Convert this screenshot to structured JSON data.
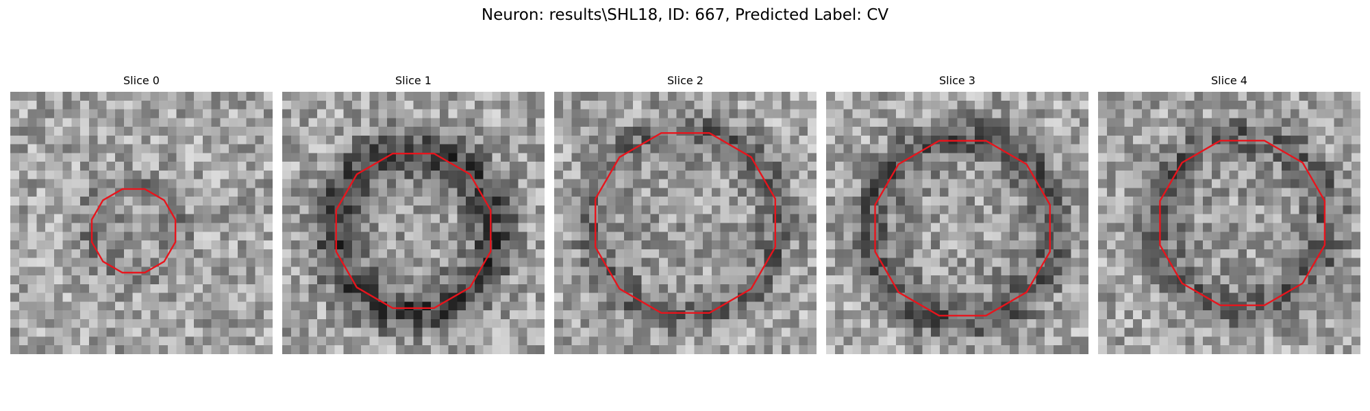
{
  "figure": {
    "title": "Neuron: results\\SHL18, ID: 667, Predicted Label: CV",
    "outline_color": "#e8141c",
    "panels": [
      {
        "label": "Slice 0",
        "outline_radius": 0.165,
        "outline_center": [
          0.47,
          0.53
        ],
        "ring_strength": 0.35,
        "ring_width": 0.06,
        "seed": 11
      },
      {
        "label": "Slice 1",
        "outline_radius": 0.305,
        "outline_center": [
          0.5,
          0.53
        ],
        "ring_strength": 0.85,
        "ring_width": 0.09,
        "seed": 23
      },
      {
        "label": "Slice 2",
        "outline_radius": 0.355,
        "outline_center": [
          0.5,
          0.5
        ],
        "ring_strength": 0.55,
        "ring_width": 0.07,
        "seed": 37
      },
      {
        "label": "Slice 3",
        "outline_radius": 0.345,
        "outline_center": [
          0.52,
          0.52
        ],
        "ring_strength": 0.7,
        "ring_width": 0.08,
        "seed": 41
      },
      {
        "label": "Slice 4",
        "outline_radius": 0.325,
        "outline_center": [
          0.55,
          0.5
        ],
        "ring_strength": 0.6,
        "ring_width": 0.08,
        "seed": 53
      }
    ]
  }
}
